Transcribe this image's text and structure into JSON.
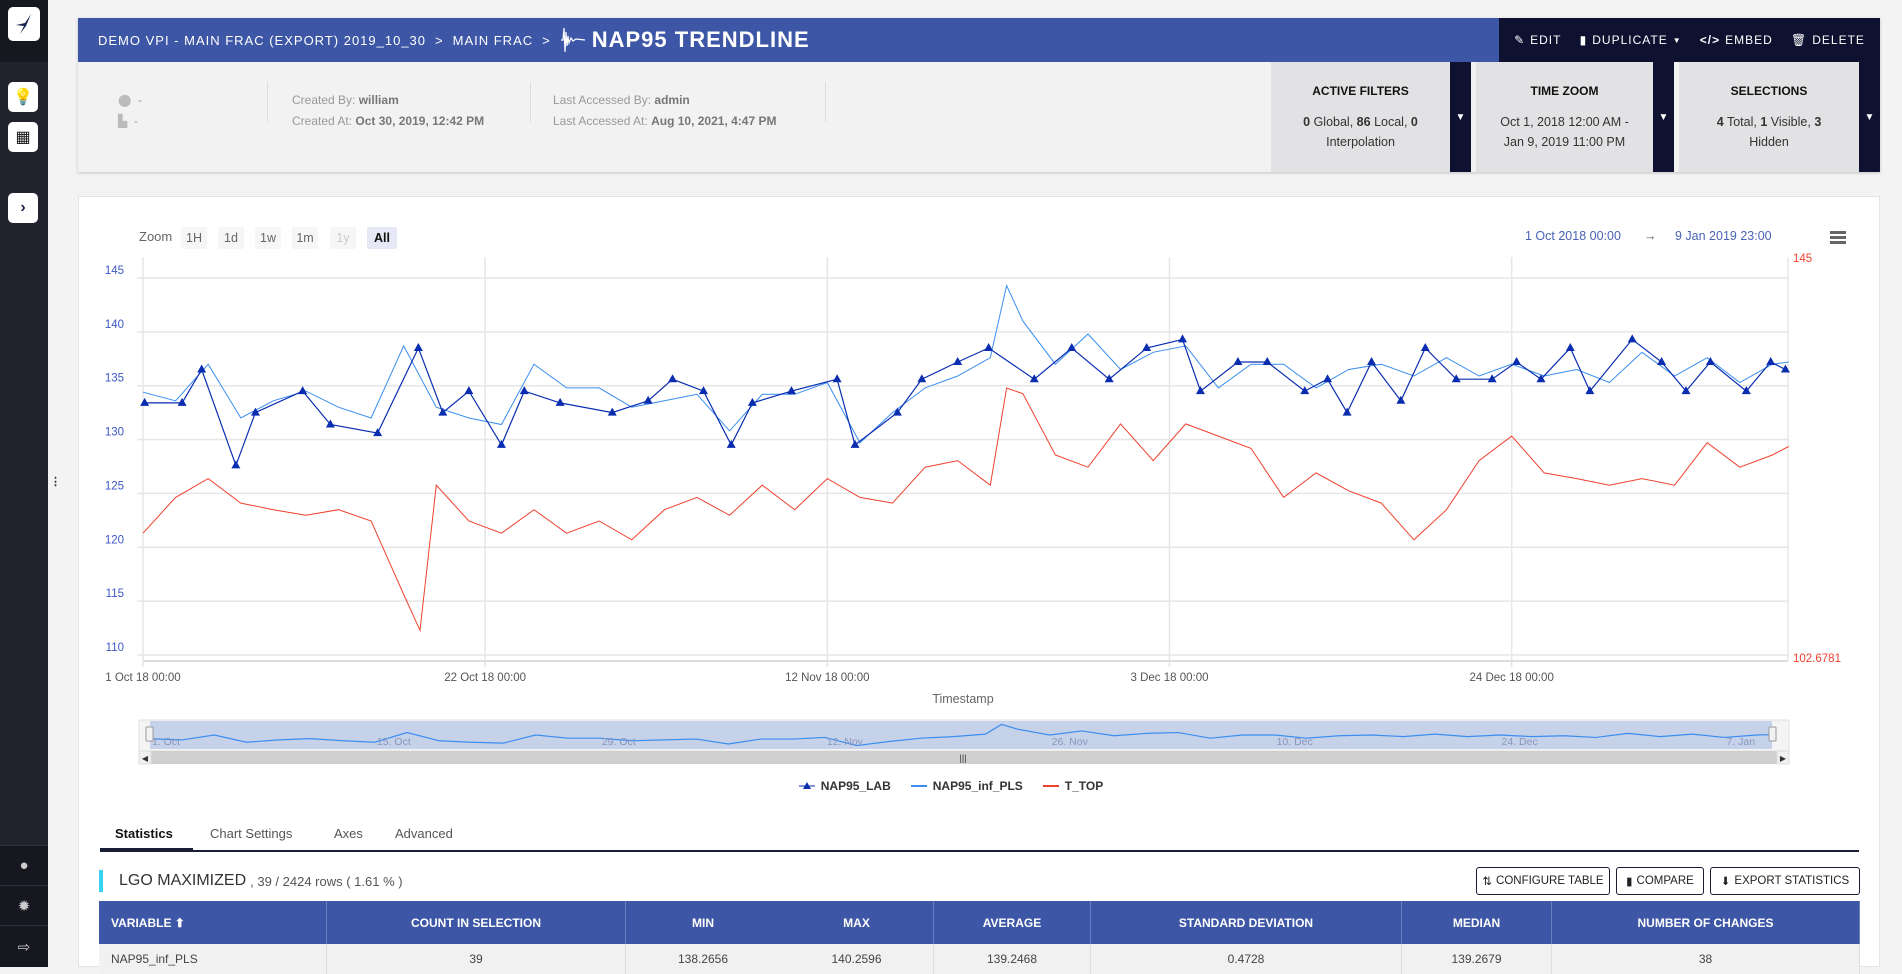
{
  "breadcrumb": {
    "project": "DEMO VPI - MAIN FRAC (EXPORT) 2019_10_30",
    "section": "MAIN FRAC",
    "separator": ">",
    "title": "NAP95 TRENDLINE"
  },
  "actions": {
    "edit": "EDIT",
    "duplicate": "DUPLICATE",
    "embed": "EMBED",
    "delete": "DELETE"
  },
  "info": {
    "location": "-",
    "plant": "-",
    "created_by_label": "Created By:",
    "created_by": "william",
    "created_at_label": "Created At:",
    "created_at": "Oct 30, 2019, 12:42 PM",
    "accessed_by_label": "Last Accessed By:",
    "accessed_by": "admin",
    "accessed_at_label": "Last Accessed At:",
    "accessed_at": "Aug 10, 2021, 4:47 PM"
  },
  "filters": {
    "active": {
      "title": "ACTIVE FILTERS",
      "global": "0",
      "global_label": "Global,",
      "local": "86",
      "local_label": "Local,",
      "interp": "0",
      "interp_label": "Interpolation"
    },
    "time_zoom": {
      "title": "TIME ZOOM",
      "line1": "Oct 1, 2018 12:00 AM -",
      "line2": "Jan 9, 2019 11:00 PM"
    },
    "selections": {
      "title": "SELECTIONS",
      "total": "4",
      "total_label": "Total,",
      "visible": "1",
      "visible_label": "Visible,",
      "hidden": "3",
      "hidden_label": "Hidden"
    }
  },
  "zoom": {
    "label": "Zoom",
    "buttons": [
      "1H",
      "1d",
      "1w",
      "1m",
      "1y",
      "All"
    ],
    "from": "1 Oct 2018 00:00",
    "arrow": "→",
    "to": "9 Jan 2019 23:00"
  },
  "colors": {
    "lab": "#0a2db0",
    "pls": "#3a8ef0",
    "ttop": "#f0412e",
    "header": "#3d57a6",
    "dark": "#0f1130"
  },
  "chart_data": {
    "type": "line",
    "title": "",
    "xlabel": "Timestamp",
    "x_unit": "days since 1 Oct 2018 00:00",
    "xlim": [
      0,
      100.96
    ],
    "x_ticks": [
      {
        "day": 0,
        "label": "1 Oct 18 00:00"
      },
      {
        "day": 21,
        "label": "22 Oct 18 00:00"
      },
      {
        "day": 42,
        "label": "12 Nov 18 00:00"
      },
      {
        "day": 63,
        "label": "3 Dec 18 00:00"
      },
      {
        "day": 84,
        "label": "24 Dec 18 00:00"
      }
    ],
    "y_left": {
      "ticks": [
        "145",
        "140",
        "135",
        "130",
        "125",
        "120",
        "115",
        "110"
      ],
      "range": [
        109.5,
        146.9
      ]
    },
    "y_right": {
      "ticks": [
        "145",
        "102.6781"
      ],
      "range": [
        102.6781,
        145
      ]
    },
    "grid": true,
    "legend_position": "bottom-center",
    "navigator_labels": [
      "1. Oct",
      "15. Oct",
      "29. Oct",
      "12. Nov",
      "26. Nov",
      "10. Dec",
      "24. Dec",
      "7. Jan"
    ],
    "series": [
      {
        "name": "NAP95_LAB",
        "axis": "left",
        "marker": "triangle",
        "x": [
          0.1,
          2.4,
          3.6,
          5.7,
          6.9,
          9.8,
          11.5,
          14.4,
          16.9,
          18.4,
          20,
          22,
          23.4,
          25.6,
          28.8,
          31,
          32.5,
          34.4,
          36.1,
          37.4,
          39.8,
          42.6,
          43.7,
          46.3,
          47.8,
          50,
          51.9,
          54.7,
          57,
          59.3,
          61.6,
          63.8,
          64.9,
          67.2,
          69,
          71.3,
          72.7,
          73.9,
          75.4,
          77.2,
          78.7,
          80.6,
          82.8,
          84.3,
          85.8,
          87.6,
          88.8,
          91.4,
          93.2,
          94.7,
          96.2,
          98.4,
          99.9,
          100.8
        ],
        "y": [
          133.4,
          133.4,
          136.5,
          127.6,
          132.5,
          134.5,
          131.4,
          130.6,
          138.5,
          132.5,
          134.5,
          129.5,
          134.5,
          133.4,
          132.5,
          133.6,
          135.6,
          134.5,
          129.5,
          133.4,
          134.5,
          135.6,
          129.5,
          132.5,
          135.6,
          137.2,
          138.5,
          135.6,
          138.5,
          135.6,
          138.5,
          139.3,
          134.5,
          137.2,
          137.2,
          134.5,
          135.6,
          132.5,
          137.2,
          133.6,
          138.5,
          135.6,
          135.6,
          137.2,
          135.6,
          138.5,
          134.5,
          139.3,
          137.2,
          134.5,
          137.2,
          134.5,
          137.2,
          136.5
        ]
      },
      {
        "name": "NAP95_inf_PLS",
        "axis": "left",
        "marker": "none",
        "x": [
          0,
          2,
          4,
          6,
          8,
          10,
          12,
          14,
          16,
          18,
          20,
          22,
          24,
          26,
          28,
          30,
          32,
          34,
          36,
          38,
          40,
          42,
          44,
          46,
          48,
          50,
          52,
          53,
          54,
          56,
          58,
          60,
          62,
          64,
          66,
          68,
          70,
          72,
          74,
          76,
          78,
          80,
          82,
          84,
          86,
          88,
          90,
          92,
          94,
          96,
          98,
          100,
          101
        ],
        "y": [
          134.4,
          133.6,
          137,
          132,
          133.6,
          134.5,
          133,
          132,
          138.7,
          133,
          132,
          131.4,
          137,
          134.8,
          134.8,
          133,
          133.6,
          134.2,
          130.8,
          134.2,
          134.2,
          135.3,
          129.7,
          132.5,
          134.8,
          135.9,
          137.6,
          144.3,
          141,
          137,
          139.8,
          136.5,
          138.1,
          138.7,
          134.8,
          137,
          137,
          134.8,
          136.5,
          137,
          135.9,
          137.6,
          135.9,
          137,
          135.9,
          136.5,
          135.3,
          138.1,
          135.9,
          137.6,
          135.3,
          137,
          137.2
        ]
      },
      {
        "name": "T_TOP",
        "axis": "right",
        "marker": "none",
        "x": [
          0,
          2,
          4,
          6,
          8,
          10,
          12,
          14,
          16,
          17,
          18,
          20,
          22,
          24,
          26,
          28,
          30,
          32,
          34,
          36,
          38,
          40,
          42,
          44,
          46,
          48,
          50,
          52,
          53,
          54,
          56,
          58,
          60,
          62,
          64,
          66,
          68,
          70,
          72,
          74,
          76,
          78,
          80,
          82,
          84,
          86,
          88,
          90,
          92,
          94,
          96,
          98,
          100,
          101
        ],
        "y": [
          115.7,
          119.5,
          121.5,
          118.9,
          118.2,
          117.6,
          118.2,
          117,
          109.2,
          105.4,
          120.8,
          117,
          115.7,
          118.2,
          115.7,
          117,
          115,
          118.2,
          119.5,
          117.6,
          120.8,
          118.2,
          121.5,
          119.5,
          118.9,
          122.7,
          123.4,
          120.8,
          131.1,
          130.5,
          124,
          122.7,
          127.3,
          123.4,
          127.3,
          126,
          124.7,
          119.5,
          122.1,
          120.2,
          118.9,
          115,
          118.2,
          123.4,
          126,
          122.1,
          121.5,
          120.8,
          121.5,
          120.8,
          125.3,
          122.7,
          124,
          124.9
        ]
      }
    ]
  },
  "tabs": [
    "Statistics",
    "Chart Settings",
    "Axes",
    "Advanced"
  ],
  "stats": {
    "title": "LGO MAXIMIZED",
    "summary": ", 39 / 2424 rows ( 1.61 % )",
    "buttons": {
      "configure": "CONFIGURE TABLE",
      "compare": "COMPARE",
      "export": "EXPORT STATISTICS"
    },
    "columns": [
      "VARIABLE ⬆",
      "COUNT IN SELECTION",
      "MIN",
      "MAX",
      "AVERAGE",
      "STANDARD DEVIATION",
      "MEDIAN",
      "NUMBER OF CHANGES"
    ],
    "rows": [
      [
        "NAP95_inf_PLS",
        "39",
        "138.2656",
        "140.2596",
        "139.2468",
        "0.4728",
        "139.2679",
        "38"
      ]
    ]
  }
}
